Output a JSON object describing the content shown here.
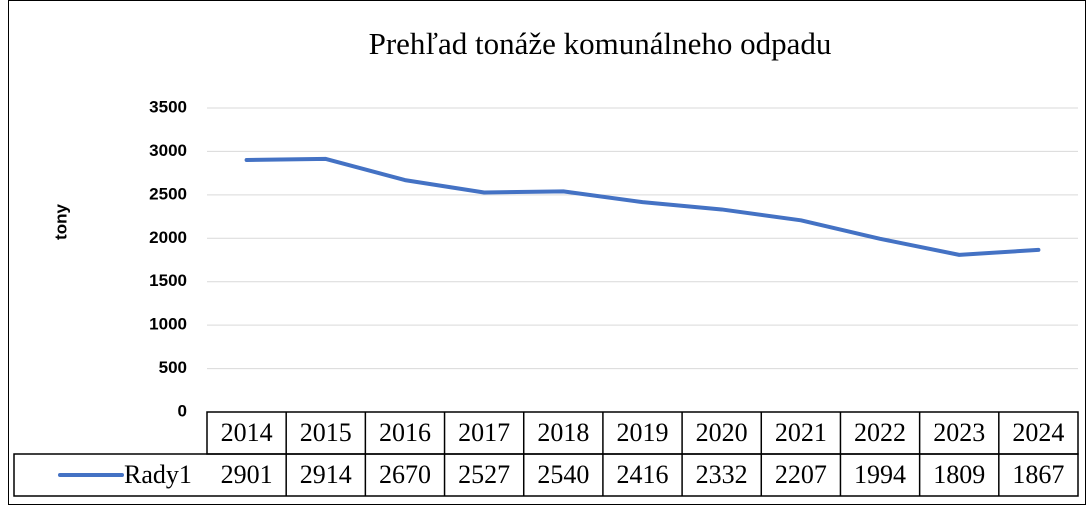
{
  "chart_data": {
    "type": "line",
    "title": "Prehľad tonáže komunálneho odpadu",
    "y_label": "tony",
    "categories": [
      "2014",
      "2015",
      "2016",
      "2017",
      "2018",
      "2019",
      "2020",
      "2021",
      "2022",
      "2023",
      "2024"
    ],
    "series": [
      {
        "name": "Rady1",
        "color": "#4472c4",
        "values": [
          2901,
          2914,
          2670,
          2527,
          2540,
          2416,
          2332,
          2207,
          1994,
          1809,
          1867
        ]
      }
    ],
    "ylim": [
      0,
      3500
    ],
    "yticks": [
      0,
      500,
      1000,
      1500,
      2000,
      2500,
      3000,
      3500
    ],
    "grid": true,
    "data_table": true
  }
}
